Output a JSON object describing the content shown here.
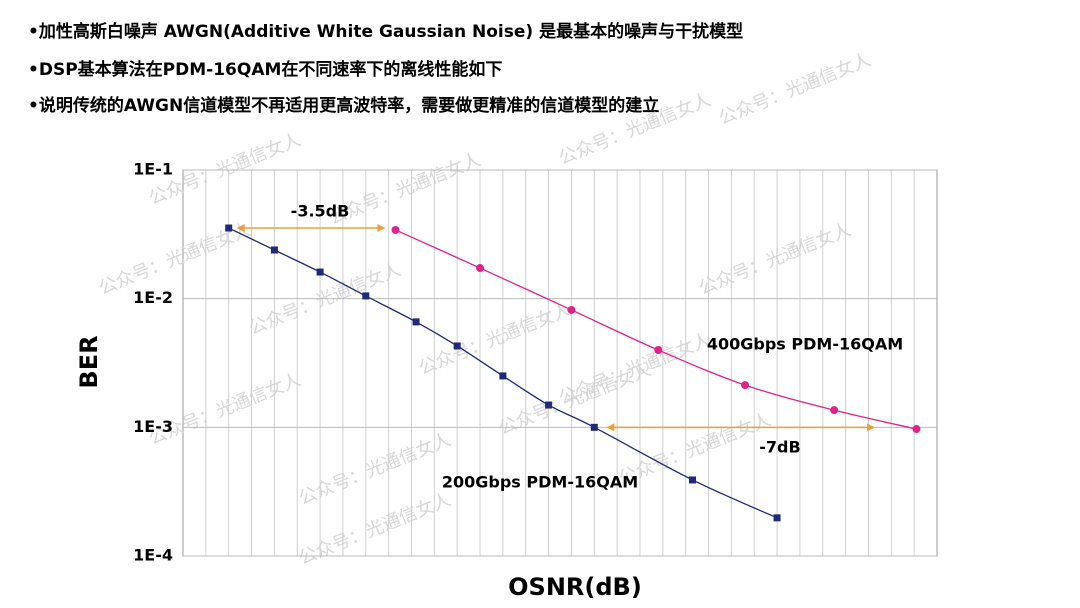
{
  "bullets": [
    "•加性高斯白噪声 AWGN(Additive White Gaussian Noise) 是最基本的噪声与干扰模型",
    "•DSP基本算法在PDM-16QAM在不同速率下的离线性能如下",
    "•说明传统的AWGN信道模型不再适用更高波特率，需要做更精准的信道模型的建立"
  ],
  "watermark": "公众号：光通信女人",
  "chart_data": {
    "type": "line",
    "x_label": "OSNR(dB)",
    "y_label": "BER",
    "xlim": [
      0,
      33
    ],
    "ylim": [
      0.0001,
      0.1
    ],
    "log_y": true,
    "grid": true,
    "yticks": [
      {
        "value": 0.1,
        "label": "1E-1"
      },
      {
        "value": 0.01,
        "label": "1E-2"
      },
      {
        "value": 0.001,
        "label": "1E-3"
      },
      {
        "value": 0.0001,
        "label": "1E-4"
      }
    ],
    "series": [
      {
        "name": "200Gbps PDM-16QAM",
        "color": "#1f2a78",
        "marker": "square",
        "x": [
          2,
          4,
          6,
          8,
          10.2,
          12,
          14,
          16,
          18,
          22.3,
          26
        ],
        "values": [
          0.0354,
          0.0239,
          0.0161,
          0.0105,
          0.0066,
          0.00429,
          0.00251,
          0.00149,
          0.001,
          0.00039,
          0.000198
        ]
      },
      {
        "name": "400Gbps PDM-16QAM",
        "color": "#e0238a",
        "marker": "circle",
        "x": [
          9.3,
          13,
          17,
          20.8,
          24.6,
          28.5,
          32.1
        ],
        "values": [
          0.0342,
          0.0173,
          0.00817,
          0.00399,
          0.00213,
          0.00136,
          0.00097
        ]
      }
    ],
    "annotations": [
      "-3.5dB",
      "-7dB"
    ]
  }
}
